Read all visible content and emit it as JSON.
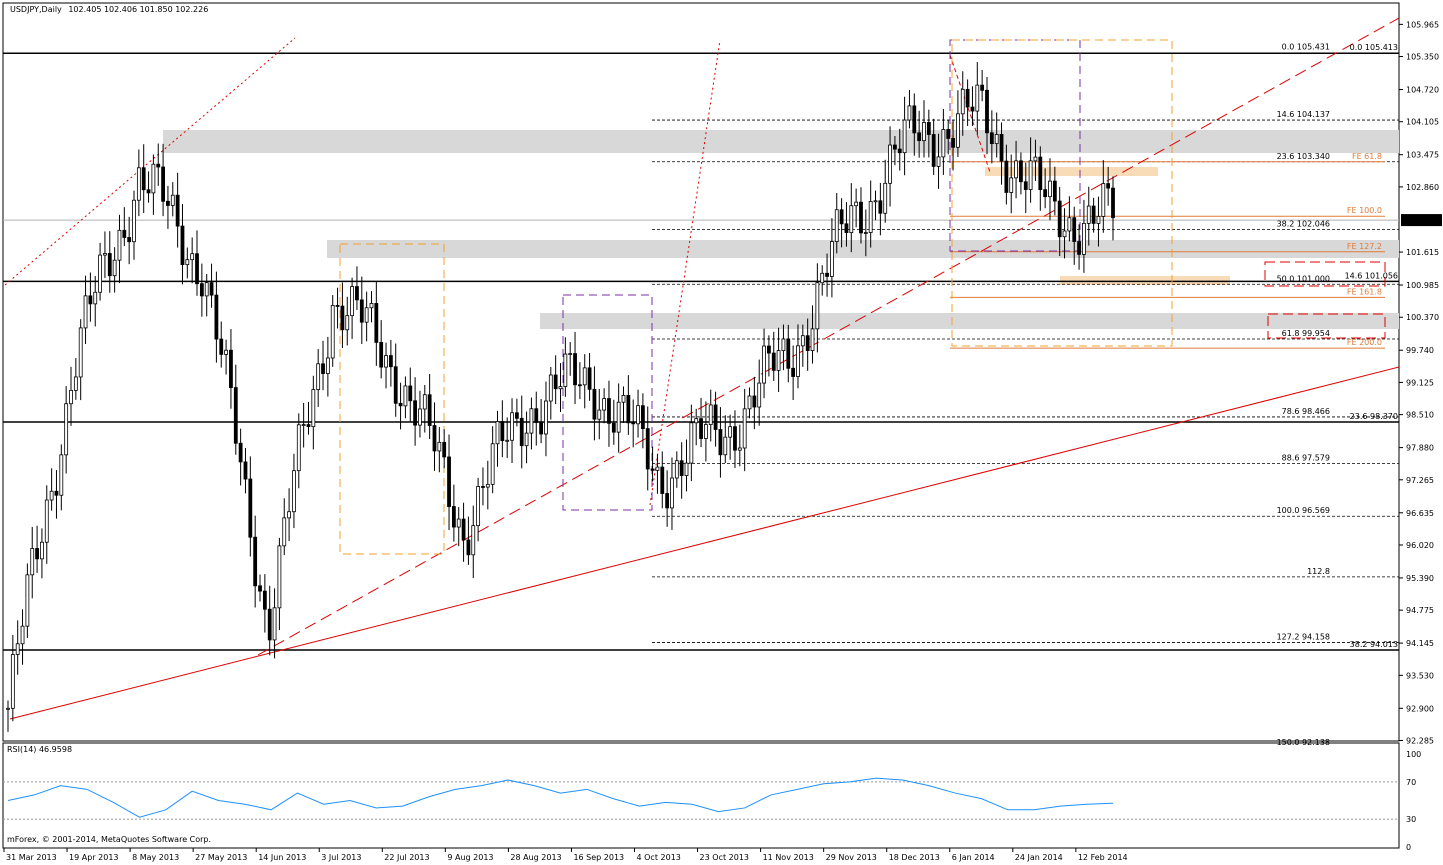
{
  "header": {
    "title": "USDJPY,Daily",
    "ohlc": "102.405 102.406 101.850 102.226"
  },
  "rsi": {
    "title": "RSI(14) 46.9598",
    "axis_labels": [
      "100",
      "70",
      "30",
      "0"
    ],
    "levels": [
      70,
      30
    ]
  },
  "copyright": "mForex, © 2001-2014, MetaQuotes Software Corp.",
  "price_axis": {
    "labels": [
      "105.965",
      "105.350",
      "104.720",
      "104.105",
      "103.475",
      "102.860",
      "101.615",
      "100.985",
      "100.370",
      "99.740",
      "99.125",
      "98.510",
      "97.880",
      "97.265",
      "96.635",
      "96.020",
      "95.390",
      "94.775",
      "94.145",
      "93.530",
      "92.900",
      "92.285"
    ],
    "current_price": "102.226"
  },
  "time_axis": {
    "labels": [
      "31 Mar 2013",
      "19 Apr 2013",
      "8 May 2013",
      "27 May 2013",
      "14 Jun 2013",
      "3 Jul 2013",
      "22 Jul 2013",
      "9 Aug 2013",
      "28 Aug 2013",
      "16 Sep 2013",
      "4 Oct 2013",
      "23 Oct 2013",
      "11 Nov 2013",
      "29 Nov 2013",
      "18 Dec 2013",
      "6 Jan 2014",
      "24 Jan 2014",
      "12 Feb 2014"
    ]
  },
  "annotations": {
    "fib_main": [
      {
        "level": "0.0",
        "price": "105.431"
      },
      {
        "level": "14.6",
        "price": "104.137"
      },
      {
        "level": "23.6",
        "price": "103.340"
      },
      {
        "level": "38.2",
        "price": "102.046"
      },
      {
        "level": "50.0",
        "price": "101.000"
      },
      {
        "level": "61.8",
        "price": "99.954"
      },
      {
        "level": "78.6",
        "price": "98.466"
      },
      {
        "level": "88.6",
        "price": "97.579"
      },
      {
        "level": "100.0",
        "price": "96.569"
      },
      {
        "level": "112.8",
        "price": ""
      },
      {
        "level": "127.2",
        "price": "94.158"
      },
      {
        "level": "150.0",
        "price": "92.138"
      }
    ],
    "fib_right": [
      {
        "level": "0.0",
        "price": "105.413"
      },
      {
        "level": "14.6",
        "price": "101.056"
      },
      {
        "level": "23.6",
        "price": "98.370"
      },
      {
        "level": "38.2",
        "price": "94.013"
      }
    ],
    "fe": [
      {
        "label": "FE 61.8",
        "price": 103.34
      },
      {
        "label": "FE 100.0",
        "price": 102.3
      },
      {
        "label": "FE 127.2",
        "price": 101.62
      },
      {
        "label": "FE 161.8",
        "price": 100.75
      },
      {
        "label": "FE 200.0",
        "price": 99.78
      }
    ]
  },
  "colors": {
    "background": "#ffffff",
    "candle": "#000000",
    "rsi_line": "#1e90ff",
    "trendline": "#e00000",
    "fe_orange": "#e07b39",
    "box_orange": "#f0a030",
    "box_purple": "#7b2fa8",
    "zone_gray": "#d8d8d8",
    "zone_peach": "#f8dcb8"
  },
  "chart_data": {
    "type": "candlestick",
    "symbol": "USDJPY",
    "timeframe": "Daily",
    "ylim": [
      92.138,
      105.965
    ],
    "x": [
      "31 Mar 2013",
      "19 Apr 2013",
      "8 May 2013",
      "27 May 2013",
      "14 Jun 2013",
      "3 Jul 2013",
      "22 Jul 2013",
      "9 Aug 2013",
      "28 Aug 2013",
      "16 Sep 2013",
      "4 Oct 2013",
      "23 Oct 2013",
      "11 Nov 2013",
      "29 Nov 2013",
      "18 Dec 2013",
      "6 Jan 2014",
      "24 Jan 2014",
      "12 Feb 2014"
    ],
    "close": [
      92.9,
      99.4,
      103.1,
      101.4,
      94.6,
      100.8,
      99.4,
      96.4,
      98.7,
      99.2,
      97.4,
      98.2,
      99.6,
      102.3,
      103.9,
      104.2,
      102.4,
      102.2
    ],
    "horizontal_levels": [
      105.413,
      101.056,
      98.37,
      94.013
    ],
    "rsi": [
      50,
      56,
      66,
      62,
      48,
      32,
      40,
      60,
      50,
      46,
      40,
      58,
      46,
      50,
      42,
      44,
      54,
      62,
      66,
      72,
      66,
      58,
      62,
      52,
      44,
      48,
      46,
      38,
      42,
      56,
      62,
      68,
      70,
      74,
      72,
      66,
      58,
      52,
      40,
      40,
      44,
      46,
      47
    ]
  }
}
